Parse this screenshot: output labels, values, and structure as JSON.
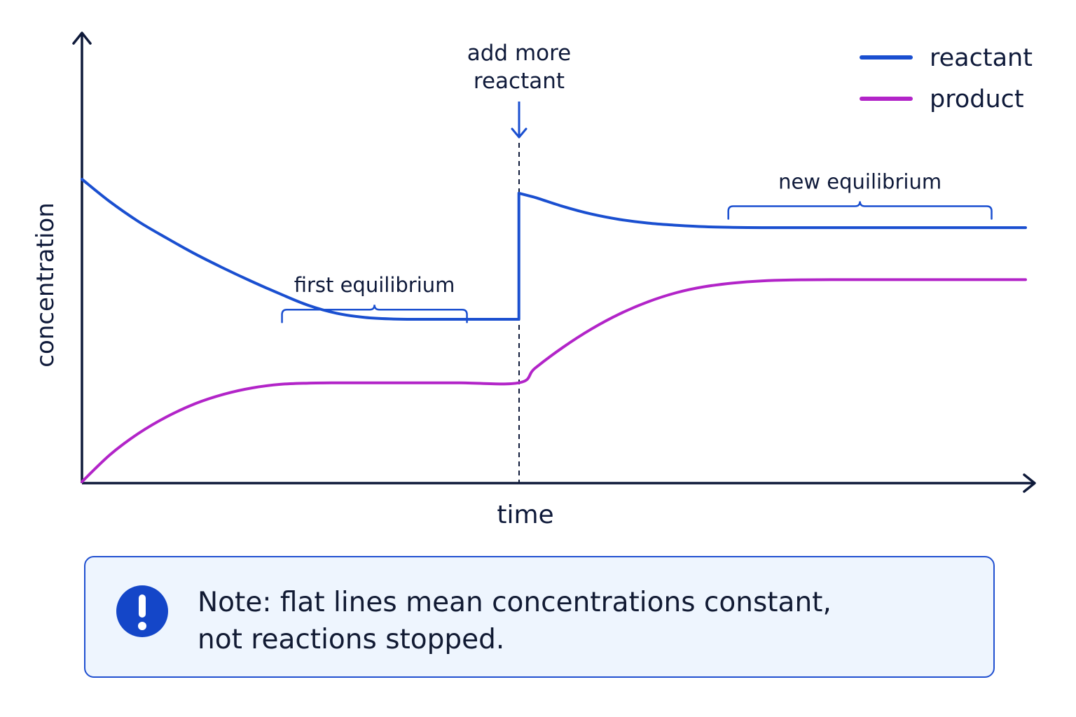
{
  "chart_data": {
    "type": "line",
    "xlabel": "time",
    "ylabel": "concentration",
    "xlim": [
      0,
      100
    ],
    "ylim": [
      0,
      100
    ],
    "legend_position": "top-right",
    "series": [
      {
        "name": "reactant",
        "color": "#1a4fd0",
        "points": [
          [
            0,
            100
          ],
          [
            3,
            92.5
          ],
          [
            6,
            86
          ],
          [
            9,
            80.5
          ],
          [
            12,
            75.3
          ],
          [
            15,
            70.6
          ],
          [
            18,
            66.2
          ],
          [
            21,
            62.1
          ],
          [
            24,
            58.3
          ],
          [
            27,
            55.7
          ],
          [
            30,
            54.3
          ],
          [
            33,
            53.8
          ],
          [
            36,
            53.7
          ],
          [
            39,
            53.7
          ],
          [
            42,
            53.7
          ],
          [
            45,
            53.7
          ],
          [
            46.3,
            53.7
          ],
          [
            46.3,
            95.4
          ],
          [
            48,
            94
          ],
          [
            51,
            91
          ],
          [
            54,
            88.5
          ],
          [
            57,
            86.7
          ],
          [
            60,
            85.5
          ],
          [
            63,
            84.8
          ],
          [
            66,
            84.3
          ],
          [
            69,
            84.1
          ],
          [
            72,
            84
          ],
          [
            75,
            84
          ],
          [
            80,
            84
          ],
          [
            90,
            84
          ],
          [
            100,
            84
          ]
        ]
      },
      {
        "name": "product",
        "color": "#b224c8",
        "points": [
          [
            0,
            0
          ],
          [
            3,
            9
          ],
          [
            6,
            16
          ],
          [
            9,
            21.5
          ],
          [
            12,
            25.8
          ],
          [
            15,
            28.9
          ],
          [
            18,
            31
          ],
          [
            21,
            32.2
          ],
          [
            24,
            32.6
          ],
          [
            27,
            32.7
          ],
          [
            30,
            32.7
          ],
          [
            35,
            32.7
          ],
          [
            40,
            32.7
          ],
          [
            46.3,
            32.7
          ],
          [
            48,
            37.5
          ],
          [
            51,
            44.5
          ],
          [
            54,
            50.5
          ],
          [
            57,
            55.5
          ],
          [
            60,
            59.5
          ],
          [
            63,
            62.5
          ],
          [
            66,
            64.5
          ],
          [
            69,
            65.7
          ],
          [
            72,
            66.4
          ],
          [
            75,
            66.7
          ],
          [
            80,
            66.8
          ],
          [
            90,
            66.8
          ],
          [
            100,
            66.8
          ]
        ]
      }
    ],
    "event": {
      "x": 46.3,
      "label_lines": [
        "add more",
        "reactant"
      ]
    },
    "annotations": [
      {
        "label": "first equilibrium",
        "x_start": 21.2,
        "x_end": 40.8,
        "y": 56.9,
        "series": "reactant"
      },
      {
        "label": "new equilibrium",
        "x_start": 68.5,
        "x_end": 96.4,
        "y": 91.1,
        "series": "reactant"
      }
    ]
  },
  "note": {
    "icon": "exclamation-icon",
    "lines": [
      "Note: flat lines mean concentrations constant,",
      "not reactions stopped."
    ]
  }
}
